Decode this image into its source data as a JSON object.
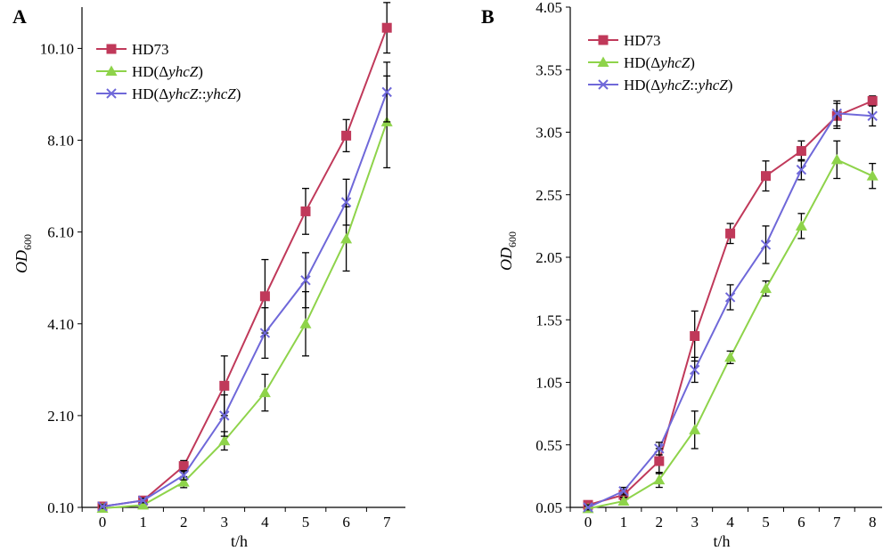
{
  "chart_data": [
    {
      "panel": "A",
      "type": "line",
      "xlabel": "t/h",
      "ylabel": "OD",
      "ylabel_sub": "600",
      "x": [
        0,
        1,
        2,
        3,
        4,
        5,
        6,
        7
      ],
      "xticks": [
        "0",
        "1",
        "2",
        "3",
        "4",
        "5",
        "6",
        "7"
      ],
      "ylim": [
        0.1,
        11.0
      ],
      "yticks": [
        0.1,
        2.1,
        4.1,
        6.1,
        8.1,
        10.1
      ],
      "ytick_labels": [
        "0.10",
        "2.10",
        "4.10",
        "6.10",
        "8.10",
        "10.10"
      ],
      "legend_position": "top-left",
      "series": [
        {
          "name": "HD73",
          "color": "#c0395a",
          "marker": "square",
          "legend": {
            "pre": "HD73",
            "it1": "",
            "mid": "",
            "it2": "",
            "post": ""
          },
          "values": [
            0.12,
            0.25,
            1.0,
            2.75,
            4.7,
            6.55,
            8.2,
            10.55
          ],
          "errors": [
            0.05,
            0.06,
            0.12,
            0.65,
            0.8,
            0.5,
            0.35,
            0.55
          ]
        },
        {
          "name": "HD(ΔyhcZ)",
          "color": "#8ed34a",
          "marker": "triangle",
          "legend": {
            "pre": "HD(Δ",
            "it1": "yhcZ",
            "mid": ")",
            "it2": "",
            "post": ""
          },
          "values": [
            0.08,
            0.15,
            0.65,
            1.55,
            2.6,
            4.1,
            5.95,
            8.5
          ],
          "errors": [
            0.04,
            0.05,
            0.12,
            0.2,
            0.4,
            0.7,
            0.7,
            1.0
          ]
        },
        {
          "name": "HD(ΔyhcZ::yhcZ)",
          "color": "#6f68d9",
          "marker": "x",
          "legend": {
            "pre": "HD(Δ",
            "it1": "yhcZ",
            "mid": "::",
            "it2": "yhcZ",
            "post": ")"
          },
          "values": [
            0.12,
            0.25,
            0.8,
            2.1,
            3.9,
            5.05,
            6.75,
            9.15
          ],
          "errors": [
            0.04,
            0.05,
            0.1,
            0.45,
            0.55,
            0.6,
            0.5,
            0.65
          ]
        }
      ]
    },
    {
      "panel": "B",
      "type": "line",
      "xlabel": "t/h",
      "ylabel": "OD",
      "ylabel_sub": "600",
      "x": [
        0,
        1,
        2,
        3,
        4,
        5,
        6,
        7,
        8
      ],
      "xticks": [
        "0",
        "1",
        "2",
        "3",
        "4",
        "5",
        "6",
        "7",
        "8"
      ],
      "ylim": [
        0.05,
        4.05
      ],
      "yticks": [
        0.05,
        0.55,
        1.05,
        1.55,
        2.05,
        2.55,
        3.05,
        3.55,
        4.05
      ],
      "ytick_labels": [
        "0.05",
        "0.55",
        "1.05",
        "1.55",
        "2.05",
        "2.55",
        "3.05",
        "3.55",
        "4.05"
      ],
      "legend_position": "top-left",
      "series": [
        {
          "name": "HD73",
          "color": "#c0395a",
          "marker": "square",
          "legend": {
            "pre": "HD73",
            "it1": "",
            "mid": "",
            "it2": "",
            "post": ""
          },
          "values": [
            0.07,
            0.15,
            0.42,
            1.42,
            2.24,
            2.7,
            2.9,
            3.18,
            3.3
          ],
          "errors": [
            0.03,
            0.04,
            0.1,
            0.2,
            0.08,
            0.12,
            0.08,
            0.1,
            0.04
          ]
        },
        {
          "name": "HD(ΔyhcZ)",
          "color": "#8ed34a",
          "marker": "triangle",
          "legend": {
            "pre": "HD(Δ",
            "it1": "yhcZ",
            "mid": ")",
            "it2": "",
            "post": ""
          },
          "values": [
            0.04,
            0.1,
            0.27,
            0.67,
            1.25,
            1.8,
            2.3,
            2.83,
            2.7
          ],
          "errors": [
            0.02,
            0.03,
            0.06,
            0.15,
            0.05,
            0.06,
            0.1,
            0.15,
            0.1
          ]
        },
        {
          "name": "HD(ΔyhcZ::yhcZ)",
          "color": "#6f68d9",
          "marker": "x",
          "legend": {
            "pre": "HD(Δ",
            "it1": "yhcZ",
            "mid": "::",
            "it2": "yhcZ",
            "post": ")"
          },
          "values": [
            0.05,
            0.18,
            0.52,
            1.15,
            1.73,
            2.15,
            2.75,
            3.2,
            3.18
          ],
          "errors": [
            0.02,
            0.03,
            0.05,
            0.1,
            0.1,
            0.15,
            0.08,
            0.1,
            0.08
          ]
        }
      ]
    }
  ]
}
